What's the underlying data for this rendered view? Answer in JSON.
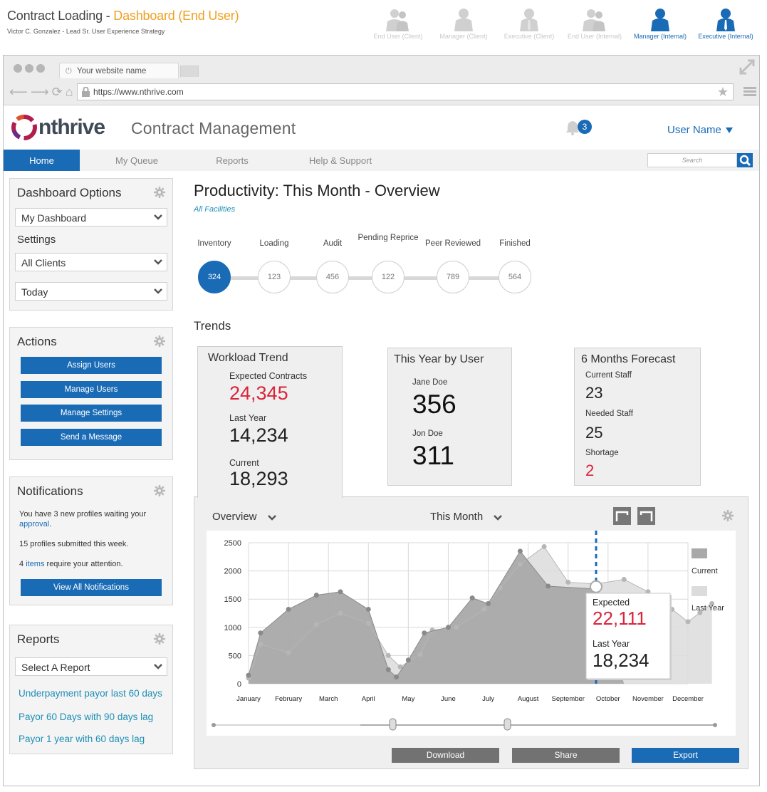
{
  "page": {
    "title_main": "Contract Loading - ",
    "title_highlight": "Dashboard (End User)",
    "subtitle": "Victor C. Gonzalez - Lead Sr. User Experience Strategy",
    "roles": [
      {
        "label": "End User (Client)",
        "active": false
      },
      {
        "label": "Manager (Client)",
        "active": false
      },
      {
        "label": "Executive (Client)",
        "active": false
      },
      {
        "label": "End User (Internal)",
        "active": false
      },
      {
        "label": "Manager (Internal)",
        "active": true
      },
      {
        "label": "Executive (Internal)",
        "active": true
      }
    ]
  },
  "browser": {
    "tab_title": "Your website name",
    "url": "https://www.nthrive.com"
  },
  "app": {
    "logo_text": "nthrive",
    "title": "Contract Management",
    "notification_count": "3",
    "user_name": "User Name"
  },
  "nav": {
    "items": [
      "Home",
      "My Queue",
      "Reports",
      "Help & Support"
    ],
    "search_placeholder": "Search"
  },
  "sidebar": {
    "dashboard_options": {
      "title": "Dashboard Options",
      "dashboard_select": "My Dashboard",
      "settings_label": "Settings",
      "client_select": "All Clients",
      "period_select": "Today"
    },
    "actions": {
      "title": "Actions",
      "buttons": [
        "Assign Users",
        "Manage Users",
        "Manage Settings",
        "Send a Message"
      ]
    },
    "notifications": {
      "title": "Notifications",
      "line1_pre": "You have 3 new profiles waiting your ",
      "line1_link": "approval",
      "line1_post": ".",
      "line2": "15 profiles submitted this week.",
      "line3_pre": "4 ",
      "line3_link": "items",
      "line3_post": " require your attention.",
      "button": "View All Notifications"
    },
    "reports": {
      "title": "Reports",
      "select": "Select A Report",
      "links": [
        "Underpayment payor last 60 days",
        "Payor 60 Days with 90 days lag",
        "Payor 1 year with 60 days lag"
      ]
    }
  },
  "main": {
    "title": "Productivity: This Month - Overview",
    "facilities": "All Facilities",
    "pipeline": [
      {
        "label": "Inventory",
        "value": "324",
        "active": true
      },
      {
        "label": "Loading",
        "value": "123",
        "active": false
      },
      {
        "label": "Audit",
        "value": "456",
        "active": false
      },
      {
        "label": "Pending Reprice",
        "value": "122",
        "active": false
      },
      {
        "label": "Peer Reviewed",
        "value": "789",
        "active": false
      },
      {
        "label": "Finished",
        "value": "564",
        "active": false
      }
    ],
    "trends_title": "Trends",
    "workload": {
      "title": "Workload Trend",
      "expected_label": "Expected Contracts",
      "expected_value": "24,345",
      "last_year_label": "Last Year",
      "last_year_value": "14,234",
      "current_label": "Current",
      "current_value": "18,293"
    },
    "by_user": {
      "title": "This Year by User",
      "user1_name": "Jane Doe",
      "user1_value": "356",
      "user2_name": "Jon Doe",
      "user2_value": "311"
    },
    "forecast": {
      "title": "6 Months Forecast",
      "current_staff_label": "Current Staff",
      "current_staff_value": "23",
      "needed_staff_label": "Needed Staff",
      "needed_staff_value": "25",
      "shortage_label": "Shortage",
      "shortage_value": "2"
    },
    "chart_controls": {
      "view_select": "Overview",
      "period_select": "This Month",
      "buttons": [
        "Download",
        "Share",
        "Export"
      ]
    }
  },
  "chart_data": {
    "type": "area",
    "x": [
      "January",
      "February",
      "March",
      "April",
      "May",
      "June",
      "July",
      "August",
      "September",
      "October",
      "November",
      "December"
    ],
    "yticks": [
      "0",
      "500",
      "1000",
      "1500",
      "2000",
      "2500"
    ],
    "ylim": [
      0,
      2500
    ],
    "grid": true,
    "legend_position": "right",
    "series": [
      {
        "name": "Current",
        "color": "#a9a9a9",
        "points": [
          [
            0,
            150
          ],
          [
            0.3,
            900
          ],
          [
            1,
            1320
          ],
          [
            1.7,
            1570
          ],
          [
            2.3,
            1630
          ],
          [
            3,
            1320
          ],
          [
            3.5,
            250
          ],
          [
            3.7,
            120
          ],
          [
            4,
            420
          ],
          [
            4.4,
            900
          ],
          [
            5,
            1000
          ],
          [
            5.6,
            1520
          ],
          [
            6,
            1420
          ],
          [
            6.8,
            2350
          ],
          [
            7.5,
            1730
          ],
          [
            8.7,
            1680
          ],
          [
            9.4,
            0
          ]
        ]
      },
      {
        "name": "Last Year",
        "color": "#dcdcdc",
        "points": [
          [
            0,
            100
          ],
          [
            0.3,
            700
          ],
          [
            1,
            550
          ],
          [
            1.7,
            1050
          ],
          [
            2.3,
            1250
          ],
          [
            3,
            1070
          ],
          [
            3.5,
            500
          ],
          [
            3.8,
            300
          ],
          [
            4.3,
            520
          ],
          [
            4.6,
            950
          ],
          [
            5.2,
            1000
          ],
          [
            5.9,
            1320
          ],
          [
            6.3,
            1700
          ],
          [
            6.8,
            2120
          ],
          [
            7.4,
            2430
          ],
          [
            8,
            1800
          ],
          [
            8.7,
            1770
          ],
          [
            9.4,
            1850
          ],
          [
            10,
            1630
          ],
          [
            10.6,
            1320
          ],
          [
            11,
            1100
          ],
          [
            11.3,
            1260
          ],
          [
            11.6,
            1420
          ]
        ]
      }
    ],
    "tooltip": {
      "expected_label": "Expected",
      "expected_value": "22,111",
      "last_year_label": "Last Year",
      "last_year_value": "18,234"
    }
  }
}
